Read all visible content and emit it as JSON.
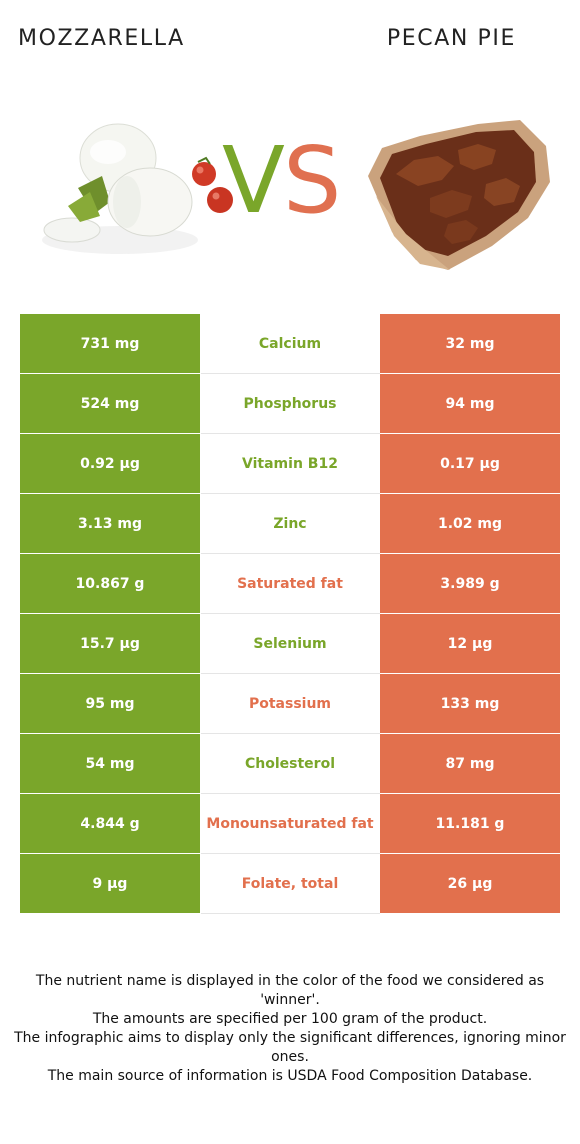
{
  "header": {
    "left_food": "MOZZARELLA",
    "right_food": "PECAN PIE",
    "vs_v": "V",
    "vs_s": "S"
  },
  "colors": {
    "winner_left": "#7aa62a",
    "winner_right": "#e2704d"
  },
  "rows": [
    {
      "left": "731 mg",
      "nutrient": "Calcium",
      "right": "32 mg",
      "winner": "left"
    },
    {
      "left": "524 mg",
      "nutrient": "Phosphorus",
      "right": "94 mg",
      "winner": "left"
    },
    {
      "left": "0.92 µg",
      "nutrient": "Vitamin B12",
      "right": "0.17 µg",
      "winner": "left"
    },
    {
      "left": "3.13 mg",
      "nutrient": "Zinc",
      "right": "1.02 mg",
      "winner": "left"
    },
    {
      "left": "10.867 g",
      "nutrient": "Saturated fat",
      "right": "3.989 g",
      "winner": "right"
    },
    {
      "left": "15.7 µg",
      "nutrient": "Selenium",
      "right": "12 µg",
      "winner": "left"
    },
    {
      "left": "95 mg",
      "nutrient": "Potassium",
      "right": "133 mg",
      "winner": "right"
    },
    {
      "left": "54 mg",
      "nutrient": "Cholesterol",
      "right": "87 mg",
      "winner": "left"
    },
    {
      "left": "4.844 g",
      "nutrient": "Monounsaturated fat",
      "right": "11.181 g",
      "winner": "right"
    },
    {
      "left": "9 µg",
      "nutrient": "Folate, total",
      "right": "26 µg",
      "winner": "right"
    }
  ],
  "footnote": {
    "line1": "The nutrient name is displayed in the color of the food we considered as 'winner'.",
    "line2": "The amounts are specified per 100 gram of the product.",
    "line3": "The infographic aims to display only the significant differences, ignoring minor ones.",
    "line4": "The main source of information is USDA Food Composition Database."
  }
}
